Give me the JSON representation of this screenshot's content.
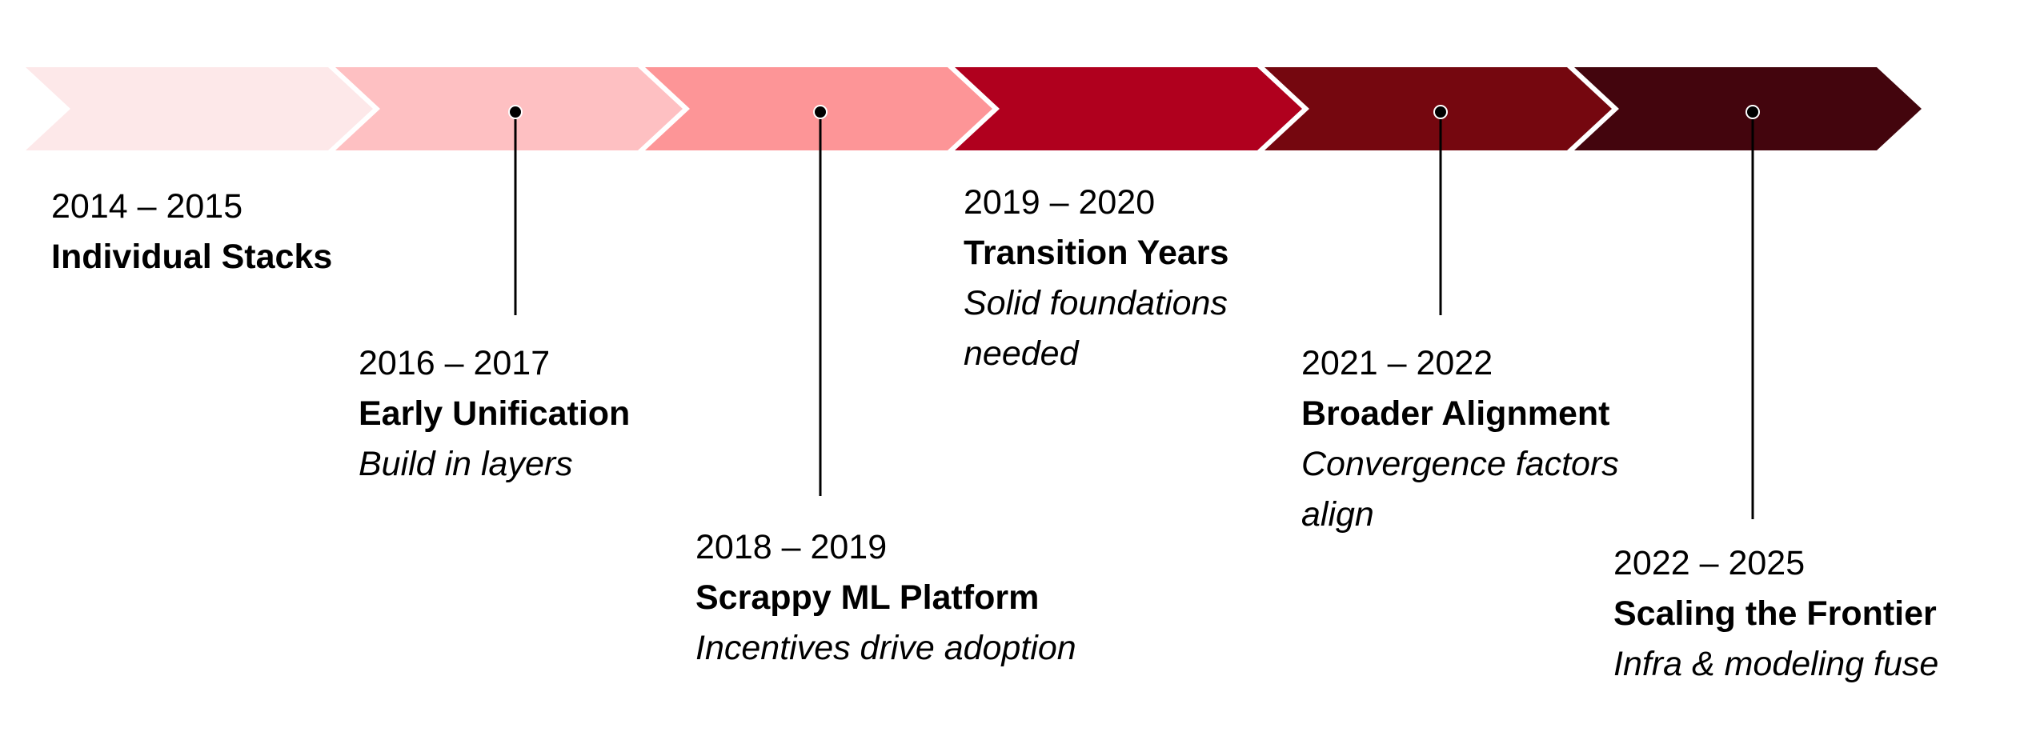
{
  "timeline": {
    "phases": [
      {
        "years": "2014 – 2015",
        "title": "Individual Stacks",
        "description": [],
        "color": "#fde8e9",
        "marker": false
      },
      {
        "years": "2016 – 2017",
        "title": "Early Unification",
        "description": [
          "Build in layers"
        ],
        "color": "#fec0c2",
        "marker": true
      },
      {
        "years": "2018 – 2019",
        "title": "Scrappy ML Platform",
        "description": [
          "Incentives drive adoption"
        ],
        "color": "#fd9597",
        "marker": true
      },
      {
        "years": "2019 – 2020",
        "title": "Transition Years",
        "description": [
          "Solid foundations",
          "needed"
        ],
        "color": "#b0001e",
        "marker": false
      },
      {
        "years": "2021 – 2022",
        "title": "Broader Alignment",
        "description": [
          "Convergence factors",
          "align"
        ],
        "color": "#75070f",
        "marker": true
      },
      {
        "years": "2022 – 2025",
        "title": "Scaling the Frontier",
        "description": [
          "Infra & modeling fuse"
        ],
        "color": "#43050d",
        "marker": true
      }
    ]
  }
}
